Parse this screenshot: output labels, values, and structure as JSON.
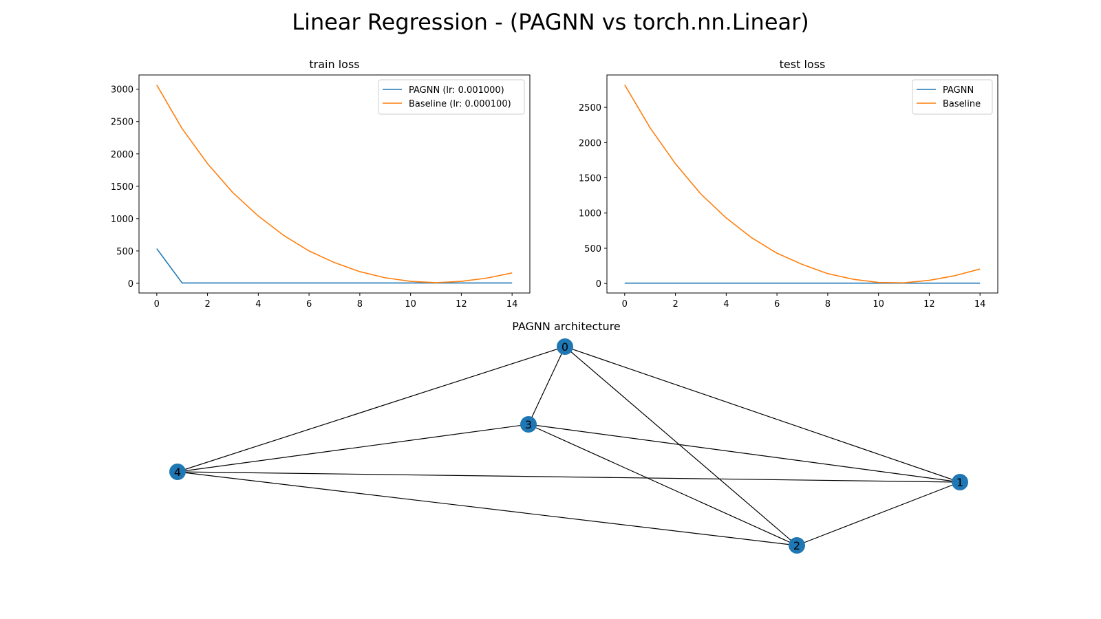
{
  "figure": {
    "title": "Linear Regression - (PAGNN vs torch.nn.Linear)"
  },
  "chart_data": [
    {
      "type": "line",
      "title": "train loss",
      "xlabel": "",
      "ylabel": "",
      "x": [
        0,
        1,
        2,
        3,
        4,
        5,
        6,
        7,
        8,
        9,
        10,
        11,
        12,
        13,
        14
      ],
      "xlim": [
        -0.7,
        14.7
      ],
      "ylim": [
        -150,
        3220
      ],
      "xticks": [
        0,
        2,
        4,
        6,
        8,
        10,
        12,
        14
      ],
      "yticks": [
        0,
        500,
        1000,
        1500,
        2000,
        2500,
        3000
      ],
      "grid": false,
      "legend_position": "upper right",
      "series": [
        {
          "name": "PAGNN (lr: 0.001000)",
          "color": "#1f77b4",
          "values": [
            535,
            5,
            5,
            5,
            5,
            5,
            5,
            5,
            5,
            5,
            5,
            5,
            5,
            5,
            5
          ]
        },
        {
          "name": "Baseline (lr: 0.000100)",
          "color": "#ff7f0e",
          "values": [
            3065,
            2390,
            1850,
            1400,
            1040,
            740,
            500,
            320,
            180,
            85,
            30,
            10,
            30,
            80,
            160
          ]
        }
      ]
    },
    {
      "type": "line",
      "title": "test loss",
      "xlabel": "",
      "ylabel": "",
      "x": [
        0,
        1,
        2,
        3,
        4,
        5,
        6,
        7,
        8,
        9,
        10,
        11,
        12,
        13,
        14
      ],
      "xlim": [
        -0.7,
        14.7
      ],
      "ylim": [
        -135,
        2960
      ],
      "xticks": [
        0,
        2,
        4,
        6,
        8,
        10,
        12,
        14
      ],
      "yticks": [
        0,
        500,
        1000,
        1500,
        2000,
        2500
      ],
      "grid": false,
      "legend_position": "upper right",
      "series": [
        {
          "name": "PAGNN",
          "color": "#1f77b4",
          "values": [
            5,
            5,
            5,
            5,
            5,
            5,
            5,
            5,
            5,
            5,
            5,
            5,
            5,
            5,
            5
          ]
        },
        {
          "name": "Baseline",
          "color": "#ff7f0e",
          "values": [
            2820,
            2210,
            1700,
            1270,
            930,
            650,
            430,
            270,
            140,
            60,
            15,
            10,
            45,
            110,
            205
          ]
        }
      ]
    }
  ],
  "graph": {
    "title": "PAGNN architecture",
    "node_color": "#1f77b4",
    "nodes": [
      "0",
      "1",
      "2",
      "3",
      "4"
    ],
    "edges": [
      [
        "0",
        "1"
      ],
      [
        "0",
        "2"
      ],
      [
        "0",
        "3"
      ],
      [
        "0",
        "4"
      ],
      [
        "3",
        "1"
      ],
      [
        "3",
        "2"
      ],
      [
        "3",
        "4"
      ],
      [
        "4",
        "1"
      ],
      [
        "4",
        "2"
      ],
      [
        "2",
        "1"
      ]
    ]
  }
}
